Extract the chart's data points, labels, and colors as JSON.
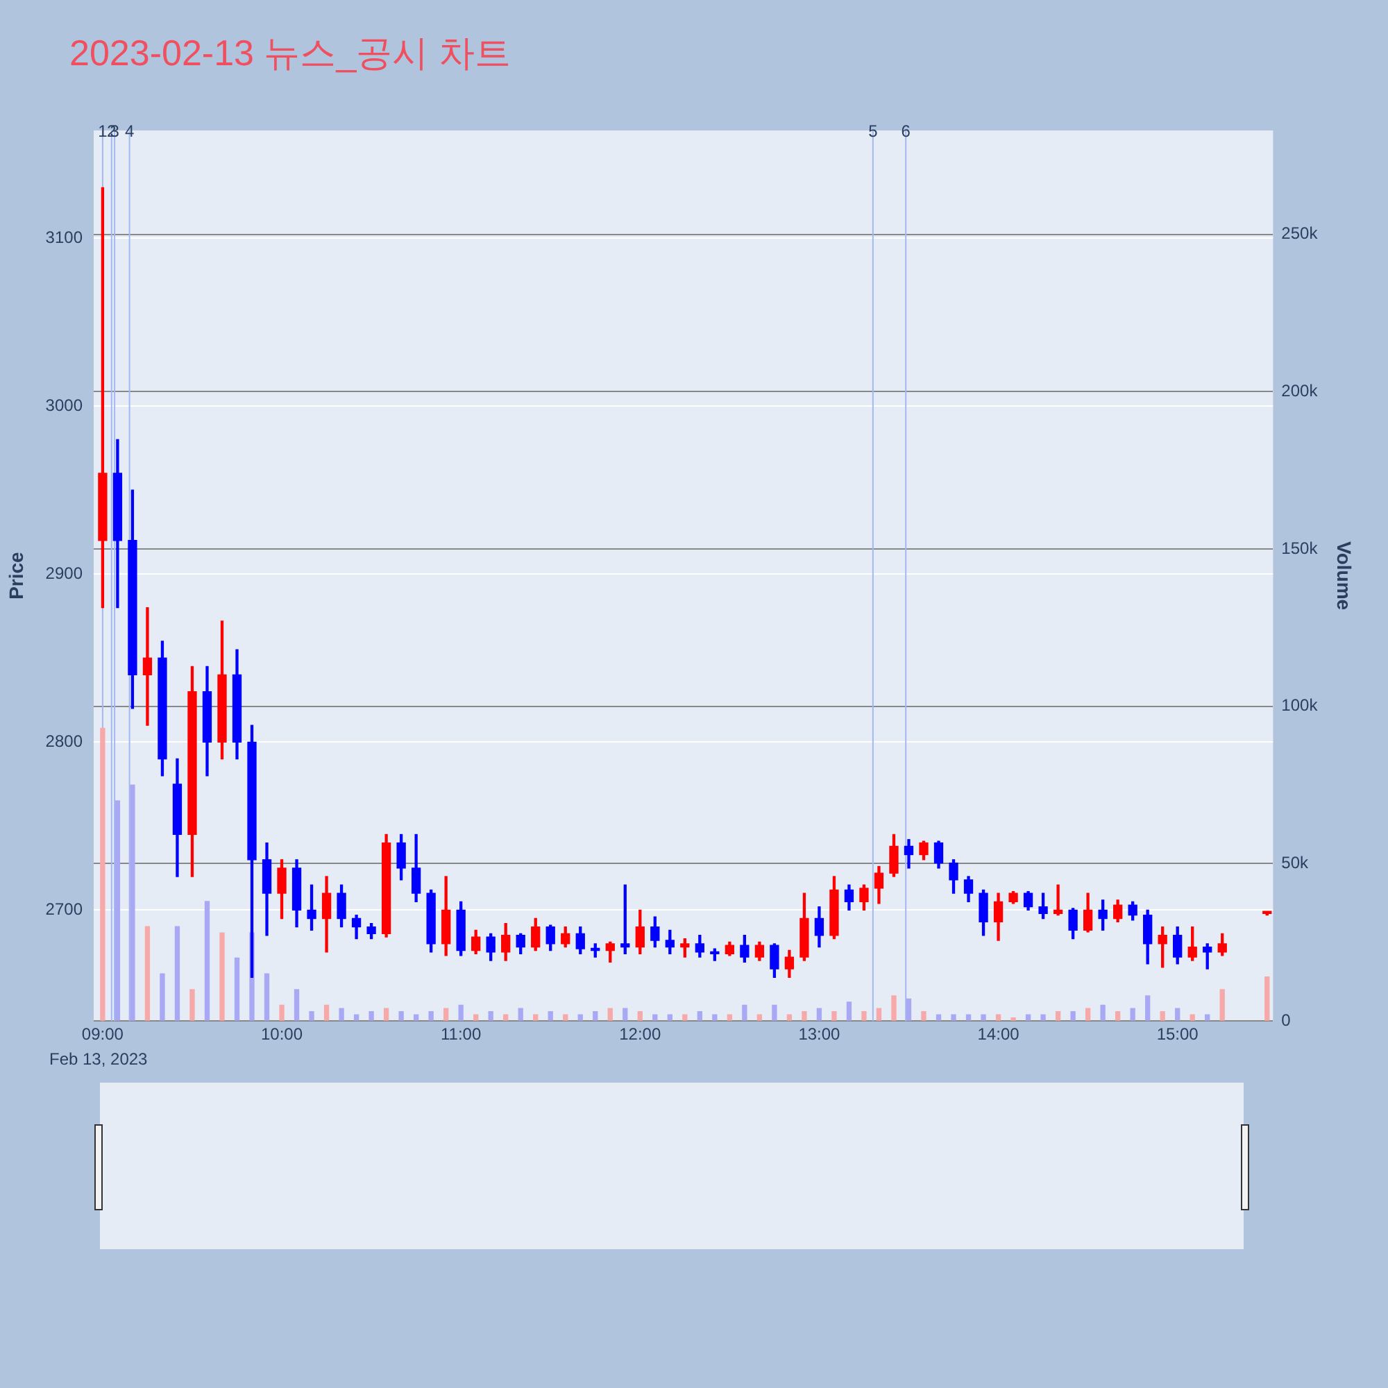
{
  "chart_data": {
    "type": "candlestick",
    "title": "2023-02-13 뉴스_공시 차트",
    "ylabel": "Price",
    "y2label": "Volume",
    "x": [
      "2023-02-13T09:00",
      "2023-02-13T09:05",
      "2023-02-13T09:10",
      "2023-02-13T09:15",
      "2023-02-13T09:20",
      "2023-02-13T09:25",
      "2023-02-13T09:30",
      "2023-02-13T09:35",
      "2023-02-13T09:40",
      "2023-02-13T09:45",
      "2023-02-13T09:50",
      "2023-02-13T09:55",
      "2023-02-13T10:00",
      "2023-02-13T10:05",
      "2023-02-13T10:10",
      "2023-02-13T10:15",
      "2023-02-13T10:20",
      "2023-02-13T10:25",
      "2023-02-13T10:30",
      "2023-02-13T10:35",
      "2023-02-13T10:40",
      "2023-02-13T10:45",
      "2023-02-13T10:50",
      "2023-02-13T10:55",
      "2023-02-13T11:00",
      "2023-02-13T11:05",
      "2023-02-13T11:10",
      "2023-02-13T11:15",
      "2023-02-13T11:20",
      "2023-02-13T11:25",
      "2023-02-13T11:30",
      "2023-02-13T11:35",
      "2023-02-13T11:40",
      "2023-02-13T11:45",
      "2023-02-13T11:50",
      "2023-02-13T11:55",
      "2023-02-13T12:00",
      "2023-02-13T12:05",
      "2023-02-13T12:10",
      "2023-02-13T12:15",
      "2023-02-13T12:20",
      "2023-02-13T12:25",
      "2023-02-13T12:30",
      "2023-02-13T12:35",
      "2023-02-13T12:40",
      "2023-02-13T12:45",
      "2023-02-13T12:50",
      "2023-02-13T12:55",
      "2023-02-13T13:00",
      "2023-02-13T13:05",
      "2023-02-13T13:10",
      "2023-02-13T13:15",
      "2023-02-13T13:20",
      "2023-02-13T13:25",
      "2023-02-13T13:30",
      "2023-02-13T13:35",
      "2023-02-13T13:40",
      "2023-02-13T13:45",
      "2023-02-13T13:50",
      "2023-02-13T13:55",
      "2023-02-13T14:00",
      "2023-02-13T14:05",
      "2023-02-13T14:10",
      "2023-02-13T14:15",
      "2023-02-13T14:20",
      "2023-02-13T14:25",
      "2023-02-13T14:30",
      "2023-02-13T14:35",
      "2023-02-13T14:40",
      "2023-02-13T14:45",
      "2023-02-13T14:50",
      "2023-02-13T14:55",
      "2023-02-13T15:00",
      "2023-02-13T15:05",
      "2023-02-13T15:10",
      "2023-02-13T15:15",
      "2023-02-13T15:30"
    ],
    "series": [
      {
        "ohlc": [
          [
            2920,
            3130,
            2880,
            2960
          ],
          [
            2960,
            2980,
            2880,
            2920
          ],
          [
            2920,
            2950,
            2820,
            2840
          ],
          [
            2840,
            2880,
            2810,
            2850
          ],
          [
            2850,
            2860,
            2780,
            2790
          ],
          [
            2775,
            2790,
            2720,
            2745
          ],
          [
            2745,
            2845,
            2720,
            2830
          ],
          [
            2830,
            2845,
            2780,
            2800
          ],
          [
            2800,
            2872,
            2790,
            2840
          ],
          [
            2840,
            2855,
            2790,
            2800
          ],
          [
            2800,
            2810,
            2660,
            2730
          ],
          [
            2730,
            2740,
            2685,
            2710
          ],
          [
            2710,
            2730,
            2695,
            2725
          ],
          [
            2725,
            2730,
            2690,
            2700
          ],
          [
            2700,
            2715,
            2688,
            2695
          ],
          [
            2695,
            2720,
            2675,
            2710
          ],
          [
            2710,
            2715,
            2690,
            2695
          ],
          [
            2695,
            2697,
            2683,
            2690
          ],
          [
            2690,
            2692,
            2683,
            2686
          ],
          [
            2686,
            2745,
            2684,
            2740
          ],
          [
            2740,
            2745,
            2718,
            2725
          ],
          [
            2725,
            2745,
            2705,
            2710
          ],
          [
            2710,
            2712,
            2675,
            2680
          ],
          [
            2680,
            2720,
            2673,
            2700
          ],
          [
            2700,
            2705,
            2673,
            2676
          ],
          [
            2676,
            2688,
            2674,
            2684
          ],
          [
            2684,
            2686,
            2670,
            2675
          ],
          [
            2675,
            2692,
            2670,
            2685
          ],
          [
            2685,
            2686,
            2674,
            2678
          ],
          [
            2678,
            2695,
            2676,
            2690
          ],
          [
            2690,
            2691,
            2676,
            2680
          ],
          [
            2680,
            2690,
            2678,
            2686
          ],
          [
            2686,
            2690,
            2674,
            2677
          ],
          [
            2677,
            2680,
            2672,
            2676
          ],
          [
            2676,
            2681,
            2669,
            2680
          ],
          [
            2680,
            2715,
            2674,
            2678
          ],
          [
            2678,
            2700,
            2674,
            2690
          ],
          [
            2690,
            2696,
            2678,
            2682
          ],
          [
            2682,
            2688,
            2674,
            2678
          ],
          [
            2678,
            2683,
            2672,
            2680
          ],
          [
            2680,
            2685,
            2672,
            2675
          ],
          [
            2675,
            2677,
            2670,
            2674
          ],
          [
            2674,
            2681,
            2673,
            2679
          ],
          [
            2679,
            2685,
            2669,
            2672
          ],
          [
            2672,
            2681,
            2670,
            2679
          ],
          [
            2679,
            2680,
            2660,
            2665
          ],
          [
            2665,
            2676,
            2660,
            2672
          ],
          [
            2672,
            2710,
            2670,
            2695
          ],
          [
            2695,
            2702,
            2678,
            2685
          ],
          [
            2685,
            2720,
            2683,
            2712
          ],
          [
            2712,
            2715,
            2700,
            2705
          ],
          [
            2705,
            2715,
            2700,
            2713
          ],
          [
            2713,
            2726,
            2704,
            2722
          ],
          [
            2722,
            2745,
            2720,
            2738
          ],
          [
            2738,
            2742,
            2725,
            2733
          ],
          [
            2733,
            2741,
            2730,
            2740
          ],
          [
            2740,
            2741,
            2725,
            2728
          ],
          [
            2728,
            2730,
            2710,
            2718
          ],
          [
            2718,
            2720,
            2705,
            2710
          ],
          [
            2710,
            2712,
            2685,
            2693
          ],
          [
            2693,
            2710,
            2682,
            2705
          ],
          [
            2705,
            2711,
            2704,
            2710
          ],
          [
            2710,
            2711,
            2700,
            2702
          ],
          [
            2702,
            2710,
            2695,
            2698
          ],
          [
            2698,
            2715,
            2697,
            2700
          ],
          [
            2700,
            2701,
            2683,
            2688
          ],
          [
            2688,
            2710,
            2687,
            2700
          ],
          [
            2700,
            2706,
            2688,
            2695
          ],
          [
            2695,
            2706,
            2693,
            2703
          ],
          [
            2703,
            2705,
            2694,
            2697
          ],
          [
            2697,
            2700,
            2668,
            2680
          ],
          [
            2680,
            2690,
            2666,
            2685
          ],
          [
            2685,
            2690,
            2668,
            2672
          ],
          [
            2672,
            2690,
            2670,
            2678
          ],
          [
            2678,
            2680,
            2665,
            2675
          ],
          [
            2675,
            2686,
            2673,
            2680
          ],
          [
            2698,
            2699,
            2697,
            2698
          ]
        ],
        "colors": [
          "#ff0000",
          "#0000ff",
          "#0000ff",
          "#ff0000",
          "#0000ff",
          "#0000ff",
          "#ff0000",
          "#0000ff",
          "#ff0000",
          "#0000ff",
          "#0000ff",
          "#0000ff",
          "#ff0000",
          "#0000ff",
          "#0000ff",
          "#ff0000",
          "#0000ff",
          "#0000ff",
          "#0000ff",
          "#ff0000",
          "#0000ff",
          "#0000ff",
          "#0000ff",
          "#ff0000",
          "#0000ff",
          "#ff0000",
          "#0000ff",
          "#ff0000",
          "#0000ff",
          "#ff0000",
          "#0000ff",
          "#ff0000",
          "#0000ff",
          "#0000ff",
          "#ff0000",
          "#0000ff",
          "#ff0000",
          "#0000ff",
          "#0000ff",
          "#ff0000",
          "#0000ff",
          "#0000ff",
          "#ff0000",
          "#0000ff",
          "#ff0000",
          "#0000ff",
          "#ff0000",
          "#ff0000",
          "#0000ff",
          "#ff0000",
          "#0000ff",
          "#ff0000",
          "#ff0000",
          "#ff0000",
          "#0000ff",
          "#ff0000",
          "#0000ff",
          "#0000ff",
          "#0000ff",
          "#0000ff",
          "#ff0000",
          "#ff0000",
          "#0000ff",
          "#0000ff",
          "#ff0000",
          "#0000ff",
          "#ff0000",
          "#0000ff",
          "#ff0000",
          "#0000ff",
          "#0000ff",
          "#ff0000",
          "#0000ff",
          "#ff0000",
          "#0000ff",
          "#ff0000",
          "#ff0000"
        ]
      },
      {
        "type": "bar",
        "axis": "y2",
        "values": [
          93000,
          70000,
          75000,
          30000,
          15000,
          30000,
          10000,
          38000,
          28000,
          20000,
          28000,
          15000,
          5000,
          10000,
          3000,
          5000,
          4000,
          2000,
          3000,
          4000,
          3000,
          2000,
          3000,
          4000,
          5000,
          2000,
          3000,
          2000,
          4000,
          2000,
          3000,
          2000,
          2000,
          3000,
          4000,
          4000,
          3000,
          2000,
          2000,
          2000,
          3000,
          2000,
          2000,
          5000,
          2000,
          5000,
          2000,
          3000,
          4000,
          3000,
          6000,
          3000,
          4000,
          8000,
          7000,
          3000,
          2000,
          2000,
          2000,
          2000,
          2000,
          1000,
          2000,
          2000,
          3000,
          3000,
          4000,
          5000,
          3000,
          4000,
          8000,
          3000,
          4000,
          2000,
          2000,
          10000,
          14000
        ],
        "colors": [
          "#f7a8a8",
          "#a8a8f5",
          "#a8a8f5",
          "#f7a8a8",
          "#a8a8f5",
          "#a8a8f5",
          "#f7a8a8",
          "#a8a8f5",
          "#f7a8a8",
          "#a8a8f5",
          "#a8a8f5",
          "#a8a8f5",
          "#f7a8a8",
          "#a8a8f5",
          "#a8a8f5",
          "#f7a8a8",
          "#a8a8f5",
          "#a8a8f5",
          "#a8a8f5",
          "#f7a8a8",
          "#a8a8f5",
          "#a8a8f5",
          "#a8a8f5",
          "#f7a8a8",
          "#a8a8f5",
          "#f7a8a8",
          "#a8a8f5",
          "#f7a8a8",
          "#a8a8f5",
          "#f7a8a8",
          "#a8a8f5",
          "#f7a8a8",
          "#a8a8f5",
          "#a8a8f5",
          "#f7a8a8",
          "#a8a8f5",
          "#f7a8a8",
          "#a8a8f5",
          "#a8a8f5",
          "#f7a8a8",
          "#a8a8f5",
          "#a8a8f5",
          "#f7a8a8",
          "#a8a8f5",
          "#f7a8a8",
          "#a8a8f5",
          "#f7a8a8",
          "#f7a8a8",
          "#a8a8f5",
          "#f7a8a8",
          "#a8a8f5",
          "#f7a8a8",
          "#f7a8a8",
          "#f7a8a8",
          "#a8a8f5",
          "#f7a8a8",
          "#a8a8f5",
          "#a8a8f5",
          "#a8a8f5",
          "#a8a8f5",
          "#f7a8a8",
          "#f7a8a8",
          "#a8a8f5",
          "#a8a8f5",
          "#f7a8a8",
          "#a8a8f5",
          "#f7a8a8",
          "#a8a8f5",
          "#f7a8a8",
          "#a8a8f5",
          "#a8a8f5",
          "#f7a8a8",
          "#a8a8f5",
          "#f7a8a8",
          "#a8a8f5",
          "#f7a8a8",
          "#f7a8a8"
        ]
      }
    ],
    "xlim": [
      "2023-02-13T08:57",
      "2023-02-13T15:32"
    ],
    "xticks": [
      {
        "value": "2023-02-13T09:00",
        "label": "09:00"
      },
      {
        "value": "2023-02-13T10:00",
        "label": "10:00"
      },
      {
        "value": "2023-02-13T11:00",
        "label": "11:00"
      },
      {
        "value": "2023-02-13T12:00",
        "label": "12:00"
      },
      {
        "value": "2023-02-13T13:00",
        "label": "13:00"
      },
      {
        "value": "2023-02-13T14:00",
        "label": "14:00"
      },
      {
        "value": "2023-02-13T15:00",
        "label": "15:00"
      }
    ],
    "ylim": [
      2634,
      3164
    ],
    "yticks": [
      2700,
      2800,
      2900,
      3000,
      3100
    ],
    "y2lim": [
      0,
      283000
    ],
    "y2ticks": [
      0,
      {
        "value": 50000,
        "label": "50k"
      },
      {
        "value": 100000,
        "label": "100k"
      },
      {
        "value": 150000,
        "label": "150k"
      },
      {
        "value": 200000,
        "label": "200k"
      },
      {
        "value": 250000,
        "label": "250k"
      }
    ],
    "ref_lines": [
      {
        "axis": "x",
        "value": "2023-02-13T09:00",
        "label": "1",
        "color": "#a3b8f0"
      },
      {
        "axis": "x",
        "value": "2023-02-13T09:03",
        "label": "2",
        "color": "#a3b8f0"
      },
      {
        "axis": "x",
        "value": "2023-02-13T09:04",
        "label": "3",
        "color": "#a3b8f0"
      },
      {
        "axis": "x",
        "value": "2023-02-13T09:09",
        "label": "4",
        "color": "#a3b8f0"
      },
      {
        "axis": "x",
        "value": "2023-02-13T13:18",
        "label": "5",
        "color": "#a3b8f0"
      },
      {
        "axis": "x",
        "value": "2023-02-13T13:29",
        "label": "6",
        "color": "#a3b8f0"
      }
    ],
    "annotations": [
      "Feb 13, 2023"
    ],
    "grid": "y"
  }
}
